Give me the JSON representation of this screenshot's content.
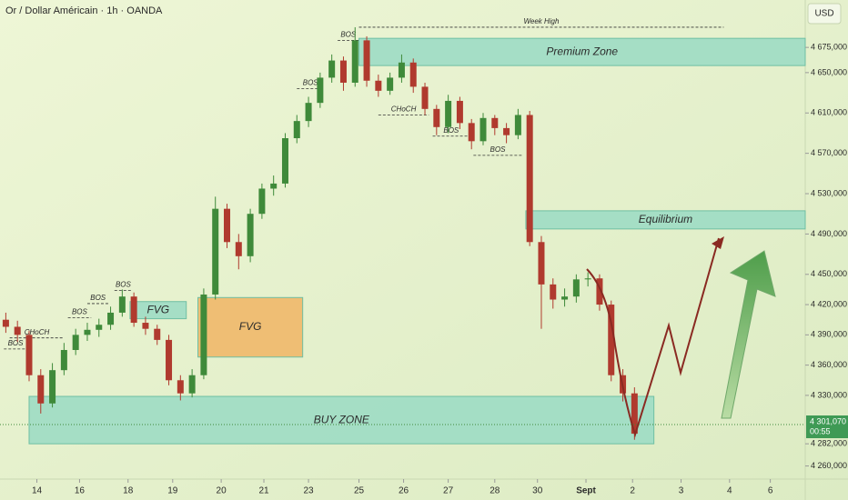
{
  "chart_data": {
    "type": "candlestick",
    "title": "Or / Dollar Américain · 1h · OANDA",
    "currency": "USD",
    "x": [
      3,
      9,
      15,
      21,
      27,
      33,
      39,
      45,
      51,
      57,
      63,
      69,
      75,
      81,
      87,
      93,
      99,
      105,
      111,
      117,
      123,
      129,
      135,
      141,
      147,
      153,
      159,
      165,
      171,
      177,
      183,
      189,
      195,
      201,
      207,
      213,
      219,
      225,
      231,
      237,
      243,
      249,
      255,
      261,
      267,
      273,
      279,
      285,
      291,
      297,
      303,
      309,
      315,
      321,
      327
    ],
    "open": [
      4405,
      4398,
      4390,
      4350,
      4322,
      4355,
      4375,
      4390,
      4395,
      4400,
      4412,
      4428,
      4402,
      4396,
      4385,
      4345,
      4332,
      4350,
      4430,
      4515,
      4482,
      4468,
      4510,
      4535,
      4540,
      4585,
      4602,
      4620,
      4645,
      4662,
      4640,
      4682,
      4642,
      4632,
      4645,
      4660,
      4636,
      4614,
      4596,
      4622,
      4600,
      4582,
      4605,
      4595,
      4588,
      4608,
      4482,
      4440,
      4425,
      4428,
      4445,
      4446,
      4420,
      4350,
      4332
    ],
    "high": [
      4412,
      4404,
      4394,
      4356,
      4362,
      4382,
      4396,
      4402,
      4406,
      4418,
      4435,
      4432,
      4408,
      4400,
      4390,
      4350,
      4356,
      4436,
      4527,
      4520,
      4490,
      4515,
      4540,
      4548,
      4590,
      4608,
      4626,
      4650,
      4668,
      4666,
      4695,
      4686,
      4648,
      4650,
      4668,
      4664,
      4640,
      4618,
      4628,
      4626,
      4604,
      4610,
      4608,
      4600,
      4614,
      4612,
      4488,
      4446,
      4436,
      4450,
      4452,
      4450,
      4424,
      4356,
      4338
    ],
    "low": [
      4392,
      4383,
      4344,
      4312,
      4318,
      4350,
      4370,
      4384,
      4388,
      4395,
      4408,
      4398,
      4390,
      4380,
      4340,
      4325,
      4328,
      4346,
      4425,
      4476,
      4455,
      4462,
      4505,
      4528,
      4536,
      4580,
      4596,
      4615,
      4640,
      4632,
      4636,
      4636,
      4626,
      4628,
      4640,
      4630,
      4608,
      4588,
      4590,
      4594,
      4574,
      4578,
      4588,
      4580,
      4584,
      4478,
      4396,
      4416,
      4418,
      4422,
      4438,
      4414,
      4344,
      4324,
      4286
    ],
    "close": [
      4398,
      4390,
      4350,
      4322,
      4355,
      4375,
      4390,
      4395,
      4400,
      4412,
      4428,
      4402,
      4396,
      4385,
      4345,
      4332,
      4350,
      4430,
      4515,
      4482,
      4468,
      4510,
      4535,
      4540,
      4585,
      4602,
      4620,
      4645,
      4662,
      4640,
      4682,
      4642,
      4632,
      4645,
      4660,
      4636,
      4614,
      4596,
      4622,
      4600,
      4582,
      4605,
      4595,
      4588,
      4608,
      4482,
      4440,
      4425,
      4428,
      4445,
      4446,
      4420,
      4350,
      4332,
      4292
    ],
    "up_color": "#3f8a3a",
    "down_color": "#b03a2e",
    "xlim": [
      0,
      415
    ],
    "ylim": [
      4247,
      4722
    ],
    "xticks": [
      {
        "value": 19,
        "label": "14"
      },
      {
        "value": 41,
        "label": "16"
      },
      {
        "value": 66,
        "label": "18"
      },
      {
        "value": 89,
        "label": "19"
      },
      {
        "value": 114,
        "label": "20"
      },
      {
        "value": 136,
        "label": "21"
      },
      {
        "value": 159,
        "label": "23"
      },
      {
        "value": 185,
        "label": "25"
      },
      {
        "value": 208,
        "label": "26"
      },
      {
        "value": 231,
        "label": "27"
      },
      {
        "value": 255,
        "label": "28"
      },
      {
        "value": 277,
        "label": "30"
      },
      {
        "value": 302,
        "label": "Sept"
      },
      {
        "value": 326,
        "label": "2"
      },
      {
        "value": 351,
        "label": "3"
      },
      {
        "value": 376,
        "label": "4"
      },
      {
        "value": 397,
        "label": "6"
      }
    ],
    "yticks": [
      {
        "value": 4675,
        "label": "4 675,000"
      },
      {
        "value": 4650,
        "label": "4 650,000"
      },
      {
        "value": 4610,
        "label": "4 610,000"
      },
      {
        "value": 4570,
        "label": "4 570,000"
      },
      {
        "value": 4530,
        "label": "4 530,000"
      },
      {
        "value": 4490,
        "label": "4 490,000"
      },
      {
        "value": 4450,
        "label": "4 450,000"
      },
      {
        "value": 4420,
        "label": "4 420,000"
      },
      {
        "value": 4390,
        "label": "4 390,000"
      },
      {
        "value": 4360,
        "label": "4 360,000"
      },
      {
        "value": 4330,
        "label": "4 330,000"
      },
      {
        "value": 4282,
        "label": "4 282,000"
      },
      {
        "value": 4260,
        "label": "4 260,000"
      }
    ],
    "last_price": {
      "value": 4301.07,
      "label": "4 301,070",
      "countdown": "00:55"
    },
    "zones": [
      {
        "label": "Premium Zone",
        "x0": 185,
        "x1": 415,
        "y0": 4657,
        "y1": 4684,
        "color": "#9ddcc4"
      },
      {
        "label": "Equilibrium",
        "x0": 271,
        "x1": 415,
        "y0": 4495,
        "y1": 4513,
        "color": "#9ddcc4"
      },
      {
        "label": "BUY ZONE",
        "x0": 15,
        "x1": 337,
        "y0": 4282,
        "y1": 4329,
        "color": "#9ddcc4"
      },
      {
        "label": "FVG",
        "x0": 67,
        "x1": 96,
        "y0": 4406,
        "y1": 4423,
        "color": "#9ddcc4"
      },
      {
        "label": "FVG",
        "x0": 102,
        "x1": 156,
        "y0": 4368,
        "y1": 4427,
        "color": "#efb86a"
      }
    ],
    "levels": [
      {
        "label": "Week High",
        "x0": 185,
        "x1": 373,
        "y": 4695
      },
      {
        "label": "CHoCH",
        "x0": 5,
        "x1": 33,
        "y": 4387
      },
      {
        "label": "BOS",
        "x0": 2,
        "x1": 14,
        "y": 4376
      },
      {
        "label": "BOS",
        "x0": 35,
        "x1": 47,
        "y": 4407
      },
      {
        "label": "BOS",
        "x0": 45,
        "x1": 56,
        "y": 4421
      },
      {
        "label": "BOS",
        "x0": 59,
        "x1": 68,
        "y": 4434
      },
      {
        "label": "BOS",
        "x0": 153,
        "x1": 167,
        "y": 4634
      },
      {
        "label": "BOS",
        "x0": 174,
        "x1": 185,
        "y": 4682
      },
      {
        "label": "CHoCH",
        "x0": 195,
        "x1": 221,
        "y": 4608
      },
      {
        "label": "BOS",
        "x0": 223,
        "x1": 242,
        "y": 4587
      },
      {
        "label": "BOS",
        "x0": 244,
        "x1": 269,
        "y": 4568
      }
    ]
  }
}
